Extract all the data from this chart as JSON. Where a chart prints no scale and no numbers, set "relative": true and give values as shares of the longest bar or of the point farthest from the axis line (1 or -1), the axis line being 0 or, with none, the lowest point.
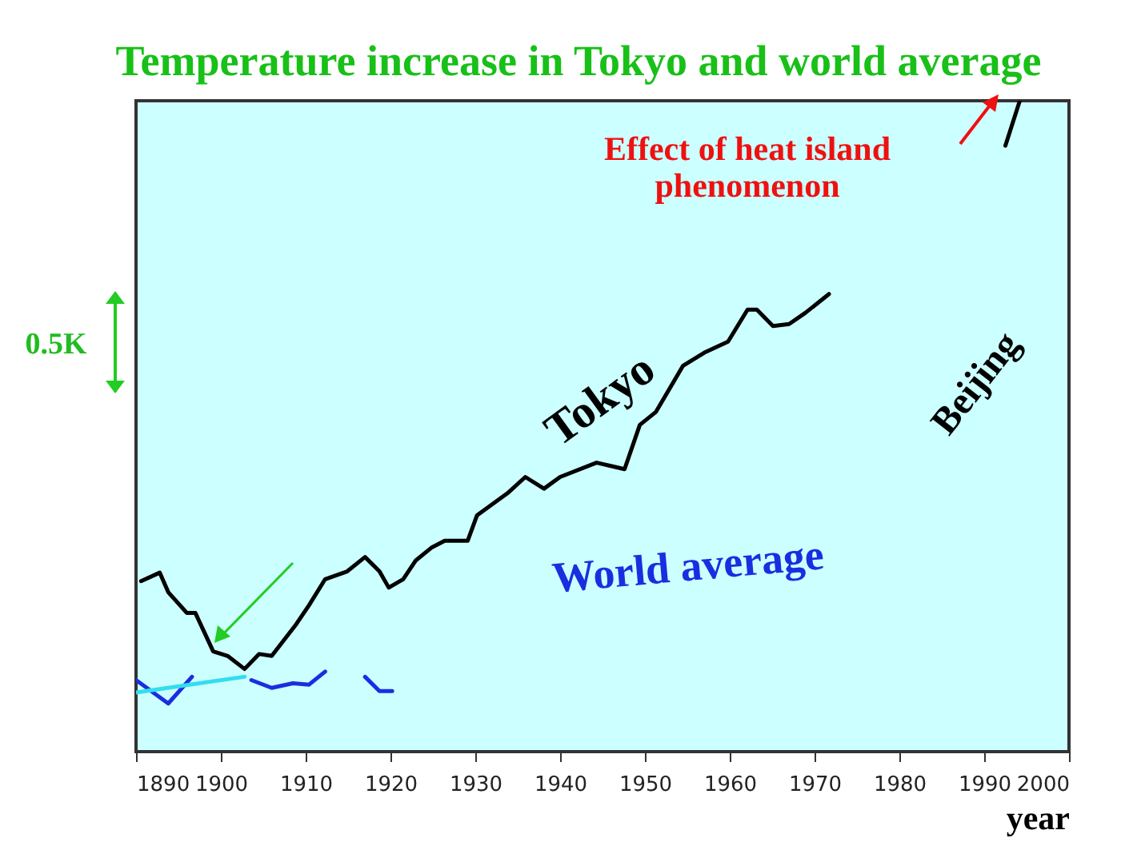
{
  "chart_data": {
    "type": "line",
    "title": "Temperature increase in Tokyo and world average",
    "xlabel": "year",
    "relative": true,
    "x": [
      1890.6,
      1892.8,
      1893.8,
      1896.0,
      1897.0,
      1899.1,
      1900.8,
      1902.8,
      1904.5,
      1906.0,
      1908.9,
      1910.4,
      1912.3,
      1914.9,
      1917.0,
      1918.7,
      1919.8,
      1921.5,
      1923.0,
      1924.9,
      1926.4,
      1929.1,
      1930.2,
      1933.8,
      1935.9,
      1938.1,
      1940.0,
      1944.3,
      1947.6,
      1949.4,
      1951.3,
      1954.5,
      1957.0,
      1959.8,
      1962.1,
      1963.2,
      1965.1,
      1967.0,
      1968.9,
      1971.7,
      1980.0,
      1992.5,
      1994.2
    ],
    "series": [
      {
        "name": "Tokyo",
        "color": "#000000",
        "values": [
          0.262,
          0.275,
          0.245,
          0.213,
          0.213,
          0.154,
          0.147,
          0.127,
          0.15,
          0.147,
          0.196,
          0.225,
          0.265,
          0.277,
          0.299,
          0.277,
          0.252,
          0.265,
          0.294,
          0.314,
          0.324,
          0.324,
          0.363,
          0.397,
          0.422,
          0.404,
          0.422,
          0.444,
          0.434,
          0.502,
          0.522,
          0.593,
          0.613,
          0.63,
          0.679,
          0.679,
          0.654,
          0.657,
          0.674,
          0.703,
          null,
          0.931,
          1.0
        ]
      },
      {
        "name": "World average",
        "color": "#1a2ee0",
        "x": [
          1890.0,
          1893.8,
          1896.6,
          1900.0,
          1903.6,
          1906.0,
          1908.5,
          1910.4,
          1912.3,
          1915.0,
          1917.0,
          1918.7,
          1920.2
        ],
        "values": [
          0.11,
          0.074,
          0.115,
          null,
          0.11,
          0.098,
          0.105,
          0.103,
          0.123,
          null,
          0.115,
          0.093,
          0.093
        ]
      },
      {
        "color": "#33ddee",
        "x": [
          1890.0,
          1902.8
        ],
        "values": [
          0.091,
          0.115
        ]
      }
    ],
    "xlim": [
      1890,
      2000
    ],
    "xticks": [
      1890,
      1900,
      1910,
      1920,
      1930,
      1940,
      1950,
      1960,
      1970,
      1980,
      1990,
      2000
    ],
    "annotations": [
      "Effect of heat island phenomenon",
      "Beijing",
      "0.5K"
    ]
  }
}
